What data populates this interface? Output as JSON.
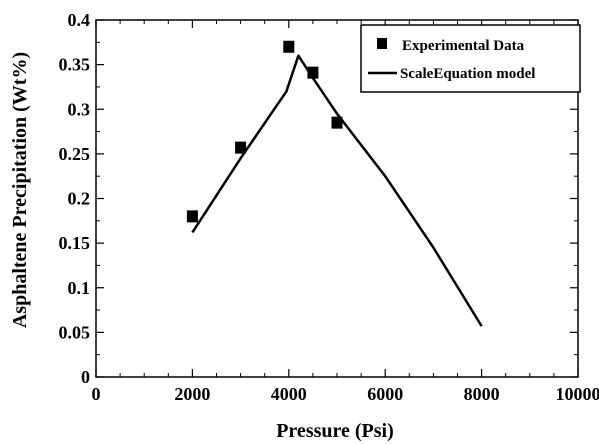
{
  "chart_data": {
    "type": "scatter",
    "xlabel": "Pressure (Psi)",
    "ylabel": "Asphaltene Precipitation (Wt%)",
    "xlim": [
      0,
      10000
    ],
    "ylim": [
      0,
      0.4
    ],
    "xticks": [
      0,
      2000,
      4000,
      6000,
      8000,
      10000
    ],
    "yticks": [
      0,
      0.05,
      0.1,
      0.15,
      0.2,
      0.25,
      0.3,
      0.35,
      0.4
    ],
    "xtick_labels": [
      "0",
      "2000",
      "4000",
      "6000",
      "8000",
      "10000"
    ],
    "ytick_labels": [
      "0",
      "0.05",
      "0.1",
      "0.15",
      "0.2",
      "0.25",
      "0.3",
      "0.35",
      "0.4"
    ],
    "grid": false,
    "legend_position": "top-right",
    "series": [
      {
        "name": "Experimental Data",
        "kind": "marker",
        "marker": "square",
        "color": "#000000",
        "x": [
          2000,
          3000,
          4000,
          4500,
          5000
        ],
        "y": [
          0.18,
          0.257,
          0.37,
          0.341,
          0.285
        ]
      },
      {
        "name": "ScaleEquation model",
        "kind": "line",
        "color": "#000000",
        "x": [
          2000,
          3000,
          3950,
          4200,
          4500,
          5000,
          6000,
          7000,
          8000
        ],
        "y": [
          0.162,
          0.245,
          0.32,
          0.36,
          0.335,
          0.295,
          0.225,
          0.145,
          0.057
        ]
      }
    ]
  }
}
